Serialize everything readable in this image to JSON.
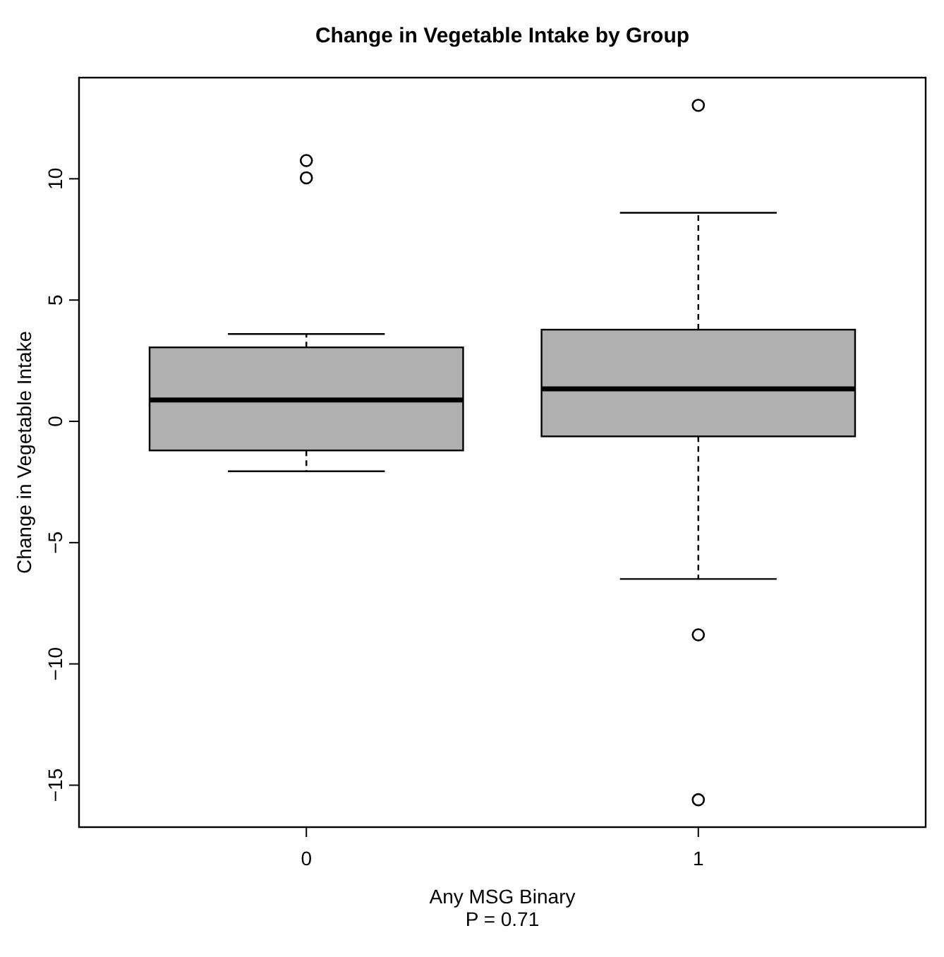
{
  "chart_data": {
    "type": "box",
    "title": "Change in Vegetable Intake by Group",
    "xlabel": "Any MSG Binary",
    "ylabel": "Change in Vegetable Intake",
    "annotations": [
      "P = 0.71"
    ],
    "categories": [
      "0",
      "1"
    ],
    "color": "#b0b0b0",
    "boxes": [
      {
        "low": -2.06,
        "q1": -1.2,
        "median": 0.88,
        "q3": 3.05,
        "high": 3.6,
        "outliers": [
          10.75,
          10.04
        ]
      },
      {
        "low": -6.5,
        "q1": -0.62,
        "median": 1.34,
        "q3": 3.78,
        "high": 8.6,
        "outliers": [
          13.03,
          -8.8,
          -15.6
        ]
      }
    ],
    "ylim": [
      -16.73,
      14.17
    ],
    "yticks": [
      -15,
      -10,
      -5,
      0,
      5,
      10
    ]
  }
}
